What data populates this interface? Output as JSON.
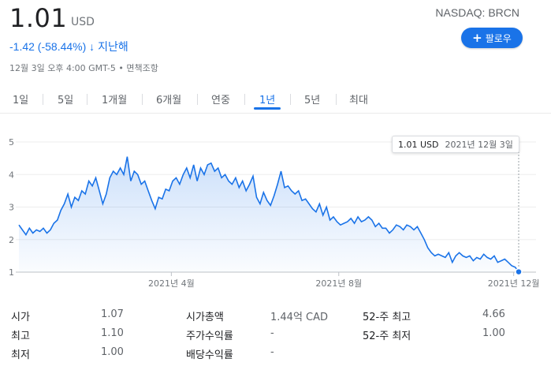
{
  "quote": {
    "price": "1.01",
    "currency": "USD",
    "exchange_ticker": "NASDAQ: BRCN",
    "change": "-1.42 (-58.44%)",
    "change_arrow": "↓",
    "change_period": "지난해",
    "timestamp": "12월 3일 오후 4:00 GMT-5 • 면책조항"
  },
  "follow_button": {
    "label": "팔로우",
    "icon": "plus-icon"
  },
  "tabs": [
    {
      "label": "1일"
    },
    {
      "label": "5일"
    },
    {
      "label": "1개월"
    },
    {
      "label": "6개월"
    },
    {
      "label": "연중"
    },
    {
      "label": "1년"
    },
    {
      "label": "5년"
    },
    {
      "label": "최대"
    }
  ],
  "active_tab": "1년",
  "tooltip": {
    "value": "1.01 USD",
    "date": "2021년 12월 3일"
  },
  "chart_data": {
    "type": "area",
    "y_ticks": [
      "1",
      "2",
      "3",
      "4",
      "5"
    ],
    "ylim": [
      1,
      5
    ],
    "x_tick_labels": [
      "2021년 4월",
      "2021년 8월",
      "2021년 12월"
    ],
    "line_color": "#1a73e8",
    "values": [
      2.45,
      2.3,
      2.15,
      2.35,
      2.2,
      2.3,
      2.25,
      2.35,
      2.2,
      2.3,
      2.5,
      2.6,
      2.9,
      3.1,
      3.4,
      3.0,
      3.3,
      3.2,
      3.5,
      3.4,
      3.8,
      3.65,
      3.9,
      3.5,
      3.1,
      3.4,
      3.9,
      4.1,
      4.0,
      4.2,
      4.0,
      4.55,
      3.8,
      4.1,
      4.0,
      3.7,
      3.8,
      3.5,
      3.2,
      2.95,
      3.3,
      3.25,
      3.55,
      3.5,
      3.8,
      3.9,
      3.7,
      4.0,
      4.2,
      3.9,
      4.3,
      3.8,
      4.2,
      4.0,
      4.3,
      4.35,
      4.1,
      4.2,
      3.9,
      4.0,
      3.8,
      3.7,
      3.9,
      3.6,
      3.8,
      3.5,
      3.7,
      3.95,
      3.3,
      3.1,
      3.45,
      3.2,
      3.05,
      3.35,
      3.7,
      4.1,
      3.6,
      3.65,
      3.5,
      3.4,
      3.5,
      3.2,
      3.25,
      3.1,
      2.95,
      2.85,
      3.1,
      2.75,
      3.0,
      2.6,
      2.7,
      2.55,
      2.45,
      2.5,
      2.55,
      2.65,
      2.5,
      2.7,
      2.55,
      2.6,
      2.7,
      2.6,
      2.4,
      2.5,
      2.35,
      2.35,
      2.2,
      2.3,
      2.45,
      2.4,
      2.3,
      2.45,
      2.4,
      2.3,
      2.4,
      2.2,
      2.0,
      1.75,
      1.6,
      1.5,
      1.55,
      1.5,
      1.45,
      1.6,
      1.3,
      1.5,
      1.6,
      1.5,
      1.45,
      1.5,
      1.35,
      1.45,
      1.4,
      1.55,
      1.45,
      1.4,
      1.5,
      1.3,
      1.35,
      1.4,
      1.3,
      1.2,
      1.15,
      1.01
    ]
  },
  "stats": [
    {
      "label": "시가",
      "value": "1.07"
    },
    {
      "label": "최고",
      "value": "1.10"
    },
    {
      "label": "최저",
      "value": "1.00"
    },
    {
      "label": "시가총액",
      "value": "1.44억 CAD"
    },
    {
      "label": "주가수익률",
      "value": "-"
    },
    {
      "label": "배당수익률",
      "value": "-"
    },
    {
      "label": "52-주 최고",
      "value": "4.66"
    },
    {
      "label": "52-주 최저",
      "value": "1.00"
    }
  ]
}
